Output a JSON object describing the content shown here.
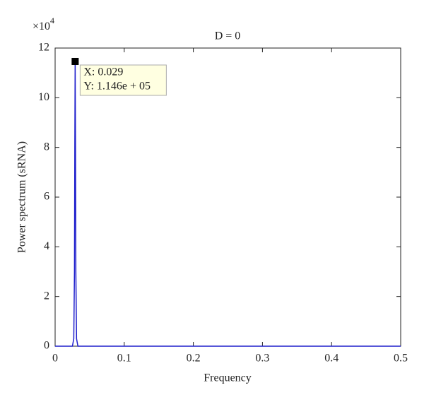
{
  "chart_data": {
    "type": "line",
    "title": "D = 0",
    "x_label": "Frequency",
    "y_label": "Power spectrum (sRNA)",
    "y_multiplier": "×10",
    "y_multiplier_exponent": "4",
    "x": [
      0,
      0.025,
      0.027,
      0.028,
      0.0285,
      0.029,
      0.0295,
      0.03,
      0.031,
      0.033,
      0.5
    ],
    "values": [
      0,
      0,
      3000,
      30000,
      80000,
      114600,
      80000,
      30000,
      3000,
      0,
      0
    ],
    "color": "#1f1fcc",
    "xlim": [
      0,
      0.5
    ],
    "xticks": [
      0,
      0.1,
      0.2,
      0.3,
      0.4,
      0.5
    ],
    "ylim": [
      0,
      120000
    ],
    "yticks": [
      {
        "value": 0,
        "label": "0"
      },
      {
        "value": 20000,
        "label": "2"
      },
      {
        "value": 40000,
        "label": "4"
      },
      {
        "value": 60000,
        "label": "6"
      },
      {
        "value": 80000,
        "label": "8"
      },
      {
        "value": 100000,
        "label": "10"
      },
      {
        "value": 120000,
        "label": "12"
      }
    ],
    "annotation": {
      "x": 0.029,
      "y": 114600,
      "x_label": "X: 0.029",
      "y_label": "Y: 1.146e + 05"
    }
  }
}
